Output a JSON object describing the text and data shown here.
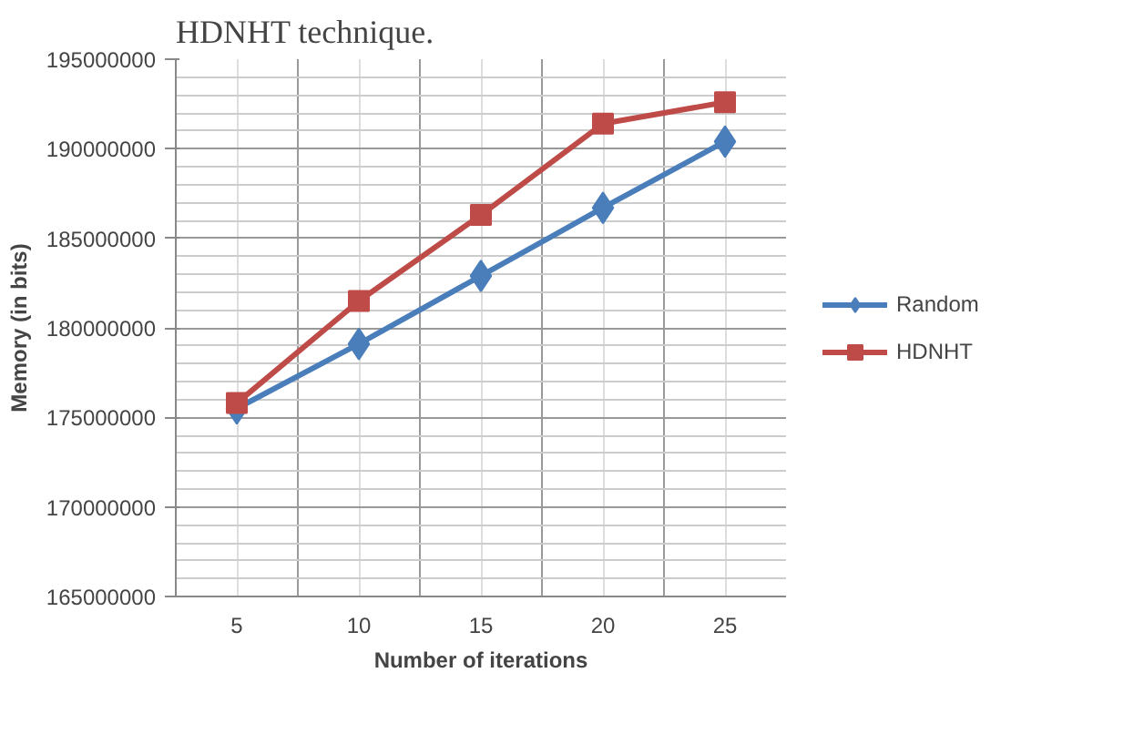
{
  "chart_data": {
    "type": "line",
    "xlabel": "Number of iterations",
    "ylabel": "Memory (in bits)",
    "annotations": [
      "HDNHT technique."
    ],
    "categories": [
      "5",
      "10",
      "15",
      "20",
      "25"
    ],
    "series": [
      {
        "name": "Random",
        "color": "#4a7ebb",
        "values": [
          175500000,
          179100000,
          182900000,
          186700000,
          190400000
        ],
        "marker": "diamond"
      },
      {
        "name": "HDNHT",
        "color": "#be4b48",
        "values": [
          175800000,
          181500000,
          186300000,
          191400000,
          192600000
        ],
        "marker": "square"
      }
    ],
    "ylim": [
      165000000,
      195000000
    ],
    "yticks": [
      165000000,
      170000000,
      175000000,
      180000000,
      185000000,
      190000000,
      195000000
    ],
    "grid": true,
    "legend": "right",
    "line_style": "solid"
  }
}
